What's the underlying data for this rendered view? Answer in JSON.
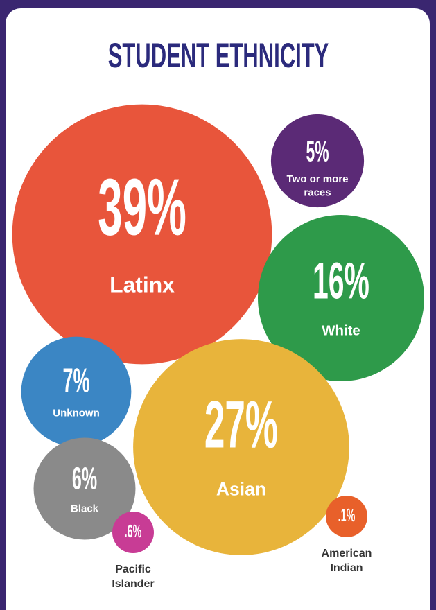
{
  "chart_data": {
    "type": "bubble",
    "title": "STUDENT ETHNICITY",
    "categories": [
      "Latinx",
      "Two or more races",
      "White",
      "Unknown",
      "Asian",
      "Black",
      "Pacific Islander",
      "American Indian"
    ],
    "values": [
      39,
      5,
      16,
      7,
      27,
      6,
      0.6,
      0.1
    ],
    "value_labels": [
      "39%",
      "5%",
      "16%",
      "7%",
      "27%",
      "6%",
      ".6%",
      ".1%"
    ],
    "colors": [
      "#e8553b",
      "#5b2a76",
      "#2e9a4a",
      "#3b86c4",
      "#e8b43b",
      "#8a8a8a",
      "#c83c95",
      "#e8602a"
    ]
  }
}
